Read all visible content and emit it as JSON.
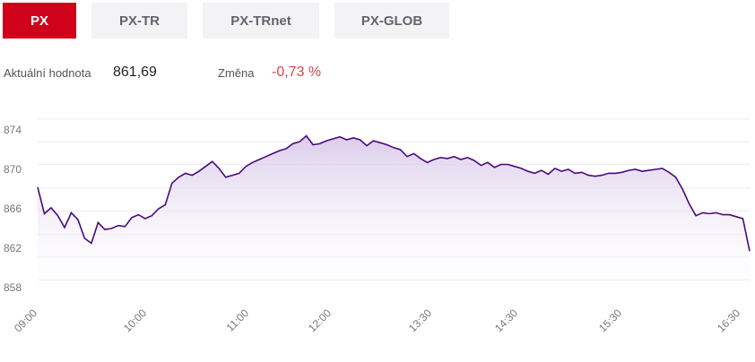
{
  "tabs": [
    {
      "label": "PX",
      "active": true
    },
    {
      "label": "PX-TR",
      "active": false
    },
    {
      "label": "PX-TRnet",
      "active": false
    },
    {
      "label": "PX-GLOB",
      "active": false
    }
  ],
  "stats": {
    "value_label": "Aktuální hodnota",
    "value": "861,69",
    "change_label": "Změna",
    "change": "-0,73 %"
  },
  "colors": {
    "accent": "#d0021b",
    "line": "#4a0a7a",
    "negative": "#e0404a"
  },
  "chart_data": {
    "type": "area",
    "title": "",
    "xlabel": "",
    "ylabel": "",
    "grid": true,
    "ylim": [
      857,
      876
    ],
    "y_ticks": [
      874,
      870,
      866,
      862,
      858
    ],
    "y_tick_labels": [
      "874",
      "870",
      "866",
      "862",
      "858"
    ],
    "x_ticks": [
      "09:00",
      "10:00",
      "11:00",
      "12:00",
      "13:30",
      "14:30",
      "15:30",
      "16:30"
    ],
    "series": [
      {
        "values": [
          868.2,
          865.5,
          866.1,
          865.3,
          864.1,
          865.6,
          864.9,
          863.0,
          862.5,
          864.6,
          863.9,
          864.0,
          864.3,
          864.2,
          865.1,
          865.4,
          865.0,
          865.3,
          866.0,
          866.4,
          868.6,
          869.2,
          869.6,
          869.4,
          869.8,
          870.3,
          870.8,
          870.1,
          869.2,
          869.4,
          869.6,
          870.3,
          870.7,
          871.0,
          871.3,
          871.6,
          871.9,
          872.1,
          872.6,
          872.8,
          873.4,
          872.5,
          872.6,
          872.9,
          873.1,
          873.3,
          873.0,
          873.2,
          873.0,
          872.4,
          872.9,
          872.7,
          872.5,
          872.2,
          872.0,
          871.3,
          871.6,
          871.1,
          870.7,
          871.0,
          871.2,
          871.1,
          871.3,
          871.0,
          871.2,
          870.9,
          870.4,
          870.7,
          870.2,
          870.5,
          870.5,
          870.3,
          870.1,
          869.8,
          869.6,
          869.9,
          869.5,
          870.1,
          869.8,
          870.0,
          869.6,
          869.7,
          869.4,
          869.3,
          869.4,
          869.6,
          869.6,
          869.7,
          869.9,
          870.0,
          869.8,
          869.9,
          870.0,
          870.1,
          869.7,
          869.2,
          868.0,
          866.5,
          865.3,
          865.6,
          865.5,
          865.6,
          865.4,
          865.4,
          865.2,
          865.0,
          861.7
        ]
      }
    ]
  }
}
